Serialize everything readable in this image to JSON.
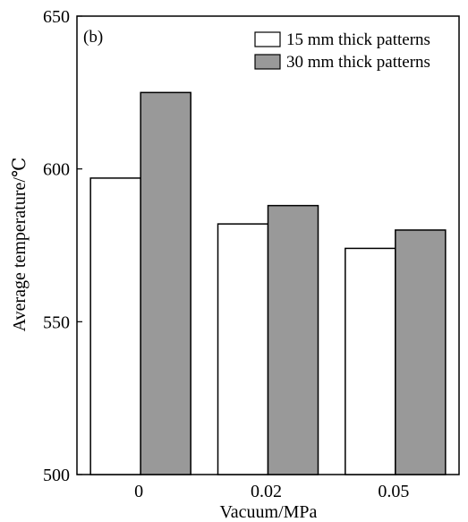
{
  "chart_data": {
    "type": "bar",
    "panel_label": "(b)",
    "xlabel": "Vacuum/MPa",
    "ylabel": "Average temperature/℃",
    "ylim": [
      500,
      650
    ],
    "yticks": [
      500,
      550,
      600,
      650
    ],
    "categories": [
      "0",
      "0.02",
      "0.05"
    ],
    "series": [
      {
        "name": "15 mm thick patterns",
        "color": "#ffffff",
        "values": [
          597,
          582,
          574
        ]
      },
      {
        "name": "30 mm thick patterns",
        "color": "#999999",
        "values": [
          625,
          588,
          580
        ]
      }
    ],
    "legend_position": "top-right",
    "grid": false
  }
}
